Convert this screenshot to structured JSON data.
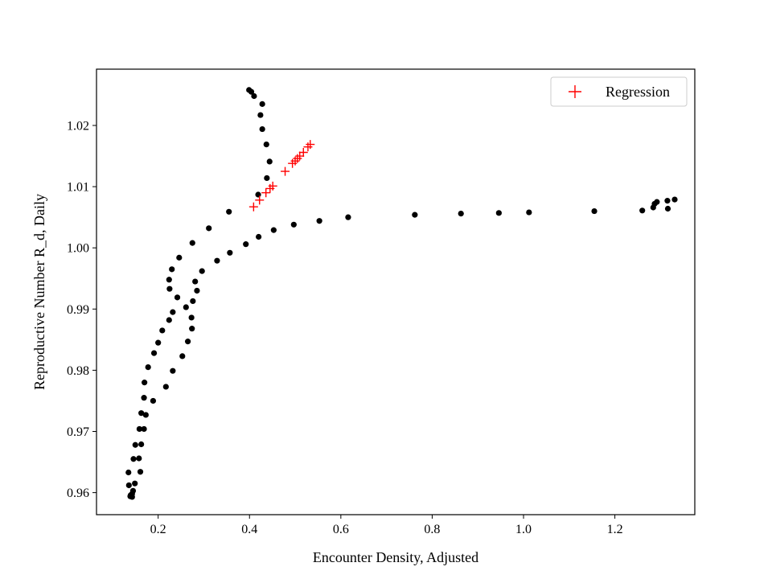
{
  "chart_data": {
    "type": "scatter",
    "xlabel": "Encounter Density, Adjusted",
    "ylabel": "Reproductive Number R_d, Daily",
    "xlim": [
      0.065,
      1.375
    ],
    "ylim": [
      0.9564,
      1.0292
    ],
    "xticks": [
      0.2,
      0.4,
      0.6,
      0.8,
      1.0,
      1.2
    ],
    "xtick_labels": [
      "0.2",
      "0.4",
      "0.6",
      "0.8",
      "1.0",
      "1.2"
    ],
    "yticks": [
      0.96,
      0.97,
      0.98,
      0.99,
      1.0,
      1.01,
      1.02
    ],
    "ytick_labels": [
      "0.96",
      "0.97",
      "0.98",
      "0.99",
      "1.00",
      "1.01",
      "1.02"
    ],
    "grid": false,
    "legend_position": "top-right",
    "series": [
      {
        "marker": "dot",
        "color": "#000000",
        "points": [
          [
            0.399,
            1.0258
          ],
          [
            0.404,
            1.0255
          ],
          [
            0.41,
            1.0248
          ],
          [
            0.428,
            1.0235
          ],
          [
            0.424,
            1.0217
          ],
          [
            0.428,
            1.0194
          ],
          [
            0.437,
            1.0169
          ],
          [
            0.444,
            1.0141
          ],
          [
            0.438,
            1.0114
          ],
          [
            0.419,
            1.0087
          ],
          [
            0.355,
            1.0059
          ],
          [
            0.311,
            1.0032
          ],
          [
            0.275,
            1.0008
          ],
          [
            0.246,
            0.9984
          ],
          [
            0.23,
            0.9965
          ],
          [
            0.224,
            0.9948
          ],
          [
            0.225,
            0.9933
          ],
          [
            0.242,
            0.9919
          ],
          [
            0.232,
            0.9895
          ],
          [
            0.224,
            0.9882
          ],
          [
            0.209,
            0.9865
          ],
          [
            0.2,
            0.9845
          ],
          [
            0.191,
            0.9828
          ],
          [
            0.178,
            0.9805
          ],
          [
            0.17,
            0.978
          ],
          [
            0.169,
            0.9755
          ],
          [
            0.173,
            0.9727
          ],
          [
            0.163,
            0.973
          ],
          [
            0.169,
            0.9704
          ],
          [
            0.159,
            0.9704
          ],
          [
            0.163,
            0.9679
          ],
          [
            0.15,
            0.9678
          ],
          [
            0.158,
            0.9656
          ],
          [
            0.146,
            0.9655
          ],
          [
            0.161,
            0.9634
          ],
          [
            0.135,
            0.9633
          ],
          [
            0.149,
            0.9615
          ],
          [
            0.136,
            0.9612
          ],
          [
            0.145,
            0.9603
          ],
          [
            0.143,
            0.9598
          ],
          [
            0.139,
            0.9594
          ],
          [
            0.143,
            0.9593
          ],
          [
            0.14,
            0.9596
          ],
          [
            0.189,
            0.975
          ],
          [
            0.217,
            0.9773
          ],
          [
            0.232,
            0.9799
          ],
          [
            0.253,
            0.9823
          ],
          [
            0.265,
            0.9847
          ],
          [
            0.274,
            0.9868
          ],
          [
            0.273,
            0.9886
          ],
          [
            0.261,
            0.9903
          ],
          [
            0.276,
            0.9913
          ],
          [
            0.285,
            0.993
          ],
          [
            0.281,
            0.9945
          ],
          [
            0.296,
            0.9962
          ],
          [
            0.329,
            0.9979
          ],
          [
            0.357,
            0.9992
          ],
          [
            0.392,
            1.0006
          ],
          [
            0.42,
            1.0018
          ],
          [
            0.453,
            1.0029
          ],
          [
            0.497,
            1.0038
          ],
          [
            0.553,
            1.0044
          ],
          [
            0.616,
            1.005
          ],
          [
            0.762,
            1.0054
          ],
          [
            0.863,
            1.0056
          ],
          [
            0.946,
            1.0057
          ],
          [
            1.012,
            1.0058
          ],
          [
            1.155,
            1.006
          ],
          [
            1.26,
            1.0061
          ],
          [
            1.284,
            1.0066
          ],
          [
            1.287,
            1.0072
          ],
          [
            1.292,
            1.0075
          ],
          [
            1.315,
            1.0077
          ],
          [
            1.331,
            1.0079
          ],
          [
            1.316,
            1.0064
          ]
        ]
      },
      {
        "name": "Regression",
        "marker": "plus",
        "color": "#ff0000",
        "points": [
          [
            0.409,
            1.0067
          ],
          [
            0.422,
            1.0078
          ],
          [
            0.436,
            1.009
          ],
          [
            0.445,
            1.0097
          ],
          [
            0.451,
            1.0101
          ],
          [
            0.478,
            1.0125
          ],
          [
            0.494,
            1.0138
          ],
          [
            0.5,
            1.0142
          ],
          [
            0.505,
            1.0146
          ],
          [
            0.51,
            1.015
          ],
          [
            0.518,
            1.0156
          ],
          [
            0.528,
            1.0165
          ],
          [
            0.533,
            1.0169
          ]
        ]
      }
    ]
  }
}
